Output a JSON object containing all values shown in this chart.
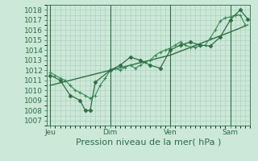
{
  "bg_color": "#cce8d8",
  "grid_color": "#aaccbb",
  "line_color_dark": "#2d6e45",
  "line_color_mid": "#3a8a55",
  "xlabel": "Pression niveau de la mer( hPa )",
  "xlabel_fontsize": 8,
  "yticks": [
    1007,
    1008,
    1009,
    1010,
    1011,
    1012,
    1013,
    1014,
    1015,
    1016,
    1017,
    1018
  ],
  "ylim": [
    1006.5,
    1018.5
  ],
  "xtick_labels": [
    "Jeu",
    "Dim",
    "Ven",
    "Sam"
  ],
  "xtick_positions": [
    0,
    48,
    96,
    144
  ],
  "xlim": [
    -3,
    160
  ],
  "series1_x": [
    0,
    4,
    8,
    12,
    16,
    20,
    24,
    28,
    32,
    36,
    40,
    44,
    48,
    52,
    56,
    60,
    64,
    68,
    72,
    76,
    80,
    84,
    88,
    92,
    96,
    100,
    104,
    108,
    112,
    116,
    120,
    124,
    128,
    132,
    136,
    140,
    144,
    148,
    152,
    156
  ],
  "series1_y": [
    1011.8,
    1011.5,
    1011.2,
    1011.0,
    1010.5,
    1010.0,
    1009.8,
    1009.5,
    1009.2,
    1009.5,
    1010.5,
    1011.2,
    1012.0,
    1012.2,
    1012.0,
    1012.3,
    1012.5,
    1012.2,
    1012.5,
    1012.8,
    1013.0,
    1013.5,
    1013.8,
    1014.0,
    1014.2,
    1014.5,
    1014.8,
    1014.5,
    1014.3,
    1014.3,
    1014.4,
    1014.5,
    1015.2,
    1016.0,
    1016.9,
    1017.2,
    1017.3,
    1017.5,
    1017.5,
    1016.5
  ],
  "series2_x": [
    0,
    8,
    16,
    24,
    28,
    32,
    36,
    48,
    56,
    64,
    72,
    80,
    88,
    96,
    104,
    112,
    120,
    128,
    136,
    144,
    152,
    158
  ],
  "series2_y": [
    1011.5,
    1011.0,
    1009.5,
    1009.0,
    1008.0,
    1008.0,
    1010.8,
    1012.0,
    1012.5,
    1013.3,
    1013.0,
    1012.5,
    1012.2,
    1014.0,
    1014.5,
    1014.8,
    1014.5,
    1014.4,
    1015.3,
    1017.0,
    1018.0,
    1017.1
  ],
  "series3_x": [
    0,
    48,
    96,
    144,
    158
  ],
  "series3_y": [
    1010.5,
    1012.0,
    1013.5,
    1015.8,
    1016.5
  ],
  "vline_positions": [
    0,
    48,
    96,
    144
  ],
  "tick_fontsize": 6.5
}
